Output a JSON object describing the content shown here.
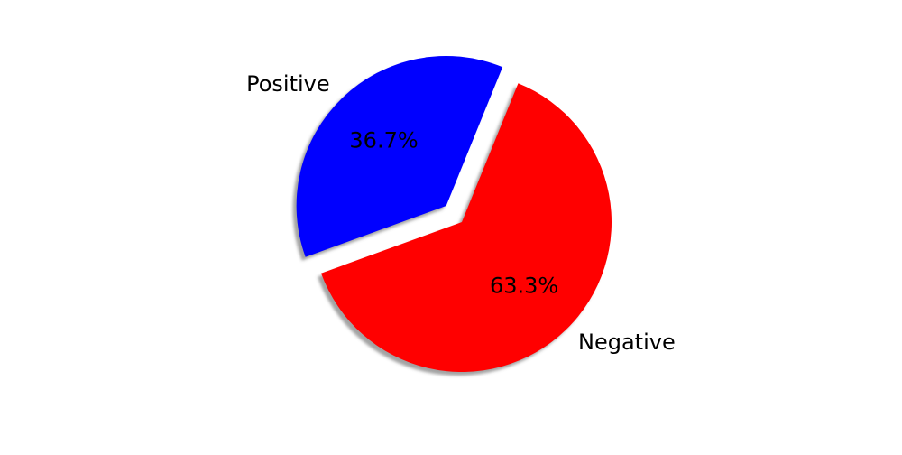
{
  "chart_data": {
    "type": "pie",
    "slices": [
      {
        "label": "Negative",
        "value": 63.3,
        "color": "#ff0000",
        "pct_label": "63.3%",
        "exploded": false
      },
      {
        "label": "Positive",
        "value": 36.7,
        "color": "#0000ff",
        "pct_label": "36.7%",
        "exploded": true
      }
    ],
    "shadow": true,
    "legend": "none"
  }
}
